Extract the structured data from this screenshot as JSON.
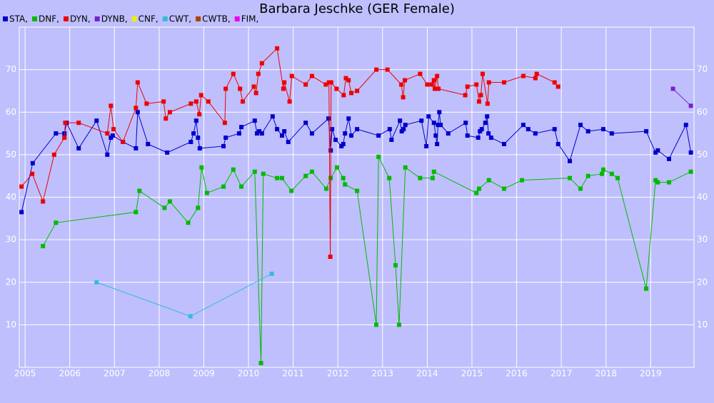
{
  "chart_data": {
    "type": "line",
    "title": "Barbara Jeschke (GER Female)",
    "xlim": [
      2004.87,
      2019.97
    ],
    "xticks": [
      2005,
      2006,
      2007,
      2008,
      2009,
      2010,
      2011,
      2012,
      2013,
      2014,
      2015,
      2016,
      2017,
      2018,
      2019
    ],
    "ylim": [
      0,
      80
    ],
    "yticks": [
      10,
      20,
      30,
      40,
      50,
      60,
      70
    ],
    "grid": true,
    "series": [
      {
        "name": "STA,",
        "color": "#0000cc",
        "x": [
          2004.92,
          2005.17,
          2005.69,
          2005.88,
          2005.93,
          2006.2,
          2006.6,
          2006.84,
          2006.92,
          2006.96,
          2007.19,
          2007.48,
          2007.52,
          2007.75,
          2008.18,
          2008.71,
          2008.77,
          2008.83,
          2008.87,
          2008.91,
          2009.44,
          2009.49,
          2009.79,
          2009.84,
          2010.14,
          2010.19,
          2010.24,
          2010.3,
          2010.54,
          2010.64,
          2010.75,
          2010.8,
          2010.89,
          2011.28,
          2011.42,
          2011.79,
          2011.84,
          2011.87,
          2011.95,
          2012.08,
          2012.12,
          2012.16,
          2012.24,
          2012.3,
          2012.43,
          2012.91,
          2013.16,
          2013.2,
          2013.39,
          2013.43,
          2013.47,
          2013.51,
          2013.87,
          2013.98,
          2014.03,
          2014.15,
          2014.19,
          2014.22,
          2014.24,
          2014.27,
          2014.3,
          2014.47,
          2014.86,
          2014.9,
          2015.14,
          2015.18,
          2015.22,
          2015.3,
          2015.34,
          2015.37,
          2015.43,
          2015.72,
          2016.15,
          2016.26,
          2016.42,
          2016.85,
          2016.93,
          2017.19,
          2017.43,
          2017.6,
          2017.94,
          2018.13,
          2018.9,
          2019.11,
          2019.16,
          2019.41,
          2019.79,
          2019.9
        ],
        "values": [
          36.5,
          48,
          55,
          55,
          57.5,
          51.5,
          58,
          50,
          54,
          54.5,
          53,
          51.5,
          60,
          52.5,
          50.5,
          53,
          55,
          58,
          54,
          51.5,
          52,
          54,
          55,
          56.5,
          58,
          55,
          55.5,
          55,
          59,
          56,
          54.5,
          55.5,
          53,
          57.5,
          55,
          58.5,
          51,
          56,
          53.5,
          52,
          52.5,
          55,
          58.5,
          54.5,
          56,
          54.5,
          56,
          53.5,
          58,
          55.5,
          56,
          57,
          58,
          52,
          59,
          57.5,
          54.5,
          52.5,
          57,
          60,
          57,
          55,
          57.5,
          54.5,
          54,
          55.5,
          56,
          57.5,
          59,
          55,
          54,
          52.5,
          57,
          56,
          55,
          56,
          52.5,
          48.5,
          57,
          55.5,
          56,
          55,
          55.5,
          50.5,
          51,
          49,
          57,
          50.5
        ]
      },
      {
        "name": "DNF,",
        "color": "#00bb00",
        "x": [
          2005.4,
          2005.69,
          2007.48,
          2007.56,
          2008.12,
          2008.24,
          2008.65,
          2008.87,
          2008.95,
          2009.07,
          2009.44,
          2009.66,
          2009.84,
          2010.14,
          2010.28,
          2010.33,
          2010.64,
          2010.75,
          2010.96,
          2011.28,
          2011.42,
          2011.74,
          2011.84,
          2011.98,
          2012.12,
          2012.16,
          2012.43,
          2012.86,
          2012.91,
          2013.15,
          2013.29,
          2013.37,
          2013.51,
          2013.84,
          2014.12,
          2014.15,
          2015.1,
          2015.16,
          2015.38,
          2015.72,
          2016.12,
          2017.19,
          2017.43,
          2017.6,
          2017.91,
          2017.94,
          2018.13,
          2018.26,
          2018.9,
          2019.11,
          2019.16,
          2019.41,
          2019.9
        ],
        "values": [
          28.5,
          34,
          36.5,
          41.5,
          37.5,
          39,
          34,
          37.5,
          47,
          41,
          42.5,
          46.5,
          42.5,
          46,
          1,
          45.5,
          44.5,
          44.5,
          41.5,
          45,
          46,
          42,
          44.5,
          47,
          44.5,
          43,
          41.5,
          10,
          49.5,
          44.5,
          24,
          10,
          47,
          44.5,
          44.5,
          46,
          41,
          42,
          44,
          42,
          44,
          44.5,
          42,
          45,
          45.5,
          46.5,
          45.5,
          44.5,
          18.5,
          44,
          43.5,
          43.5,
          46
        ]
      },
      {
        "name": "DYN,",
        "color": "#ee0000",
        "x": [
          2004.92,
          2005.16,
          2005.4,
          2005.65,
          2005.88,
          2005.9,
          2006.2,
          2006.84,
          2006.92,
          2006.98,
          2007.19,
          2007.48,
          2007.52,
          2007.72,
          2008.1,
          2008.15,
          2008.24,
          2008.71,
          2008.83,
          2008.9,
          2008.94,
          2009.1,
          2009.47,
          2009.49,
          2009.66,
          2009.81,
          2009.87,
          2010.12,
          2010.17,
          2010.22,
          2010.3,
          2010.64,
          2010.78,
          2010.8,
          2010.92,
          2010.97,
          2011.28,
          2011.42,
          2011.73,
          2011.8,
          2011.83,
          2011.85,
          2011.97,
          2012.13,
          2012.18,
          2012.24,
          2012.3,
          2012.43,
          2012.86,
          2013.11,
          2013.42,
          2013.46,
          2013.5,
          2013.84,
          2014.0,
          2014.1,
          2014.15,
          2014.17,
          2014.22,
          2014.25,
          2014.85,
          2014.9,
          2015.1,
          2015.16,
          2015.2,
          2015.24,
          2015.35,
          2015.38,
          2015.72,
          2016.15,
          2016.42,
          2016.45,
          2016.85,
          2016.93
        ],
        "values": [
          42.5,
          45.5,
          39,
          50,
          54,
          57.5,
          57.5,
          55,
          61.5,
          56,
          53,
          61,
          67,
          62,
          62.5,
          58.5,
          60,
          62,
          62.5,
          59.5,
          64,
          62.5,
          57.5,
          65.5,
          69,
          65.5,
          62.5,
          66,
          64.5,
          69,
          71.5,
          75,
          65.5,
          67,
          62.5,
          68.5,
          66.5,
          68.5,
          66.5,
          67,
          26,
          67,
          65.5,
          64,
          68,
          67.5,
          64.5,
          65,
          70,
          70,
          66.5,
          63.5,
          67.5,
          69,
          66.5,
          66.5,
          67.5,
          65.5,
          68.5,
          65.5,
          64,
          66,
          66.5,
          62.5,
          64,
          69,
          62,
          67,
          67,
          68.5,
          68,
          69,
          67,
          66
        ]
      },
      {
        "name": "DYNB,",
        "color": "#7722cc",
        "x": [
          2019.5,
          2019.9
        ],
        "values": [
          65.5,
          61.5
        ]
      },
      {
        "name": "CNF,",
        "color": "#eeee00",
        "x": [],
        "values": []
      },
      {
        "name": "CWT,",
        "color": "#33bbdd",
        "x": [
          2006.6,
          2008.7,
          2010.52
        ],
        "values": [
          20,
          12,
          22
        ]
      },
      {
        "name": "CWTB,",
        "color": "#aa4400",
        "x": [],
        "values": []
      },
      {
        "name": "FIM,",
        "color": "#ee00ee",
        "x": [],
        "values": []
      }
    ]
  }
}
